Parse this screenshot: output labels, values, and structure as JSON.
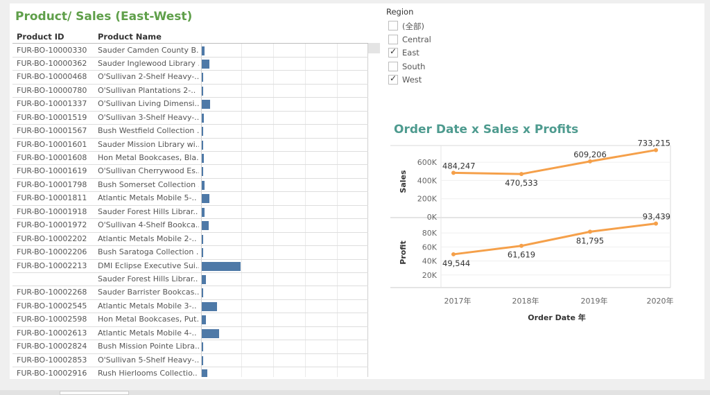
{
  "left_panel": {
    "title": "Product/ Sales (East-West)",
    "columns": {
      "product_id": "Product ID",
      "product_name": "Product Name"
    },
    "rows": [
      {
        "id": "FUR-BO-10000330",
        "name": "Sauder Camden County B..",
        "sales": 140
      },
      {
        "id": "FUR-BO-10000362",
        "name": "Sauder Inglewood Library ..",
        "sales": 400
      },
      {
        "id": "FUR-BO-10000468",
        "name": "O'Sullivan 2-Shelf Heavy-..",
        "sales": 30
      },
      {
        "id": "FUR-BO-10000780",
        "name": "O'Sullivan Plantations 2-..",
        "sales": 90
      },
      {
        "id": "FUR-BO-10001337",
        "name": "O'Sullivan Living Dimensi..",
        "sales": 460
      },
      {
        "id": "FUR-BO-10001519",
        "name": "O'Sullivan 3-Shelf Heavy-..",
        "sales": 110
      },
      {
        "id": "FUR-BO-10001567",
        "name": "Bush Westfield Collection ..",
        "sales": 40
      },
      {
        "id": "FUR-BO-10001601",
        "name": "Sauder Mission Library wi..",
        "sales": 30
      },
      {
        "id": "FUR-BO-10001608",
        "name": "Hon Metal Bookcases, Bla..",
        "sales": 120
      },
      {
        "id": "FUR-BO-10001619",
        "name": "O'Sullivan Cherrywood Es..",
        "sales": 40
      },
      {
        "id": "FUR-BO-10001798",
        "name": "Bush Somerset Collection ..",
        "sales": 130
      },
      {
        "id": "FUR-BO-10001811",
        "name": "Atlantic Metals Mobile 5-..",
        "sales": 400
      },
      {
        "id": "FUR-BO-10001918",
        "name": "Sauder Forest Hills Librar..",
        "sales": 150
      },
      {
        "id": "FUR-BO-10001972",
        "name": "O'Sullivan 4-Shelf Bookca..",
        "sales": 360
      },
      {
        "id": "FUR-BO-10002202",
        "name": "Atlantic Metals Mobile 2-..",
        "sales": 40
      },
      {
        "id": "FUR-BO-10002206",
        "name": "Bush Saratoga Collection ..",
        "sales": 40
      },
      {
        "id": "FUR-BO-10002213",
        "name": "DMI Eclipse Executive Sui..",
        "sales": 2080
      },
      {
        "id": "",
        "name": "Sauder Forest Hills Librar..",
        "sales": 230
      },
      {
        "id": "FUR-BO-10002268",
        "name": "Sauder Barrister Bookcas..",
        "sales": 70
      },
      {
        "id": "FUR-BO-10002545",
        "name": "Atlantic Metals Mobile 3-..",
        "sales": 800
      },
      {
        "id": "FUR-BO-10002598",
        "name": "Hon Metal Bookcases, Put..",
        "sales": 230
      },
      {
        "id": "FUR-BO-10002613",
        "name": "Atlantic Metals Mobile 4-..",
        "sales": 920
      },
      {
        "id": "FUR-BO-10002824",
        "name": "Bush Mission Pointe Libra..",
        "sales": 60
      },
      {
        "id": "FUR-BO-10002853",
        "name": "O'Sullivan 5-Shelf Heavy-..",
        "sales": 60
      },
      {
        "id": "FUR-BO-10002916",
        "name": "Rush Hierlooms Collectio..",
        "sales": 310
      }
    ]
  },
  "region_filter": {
    "title": "Region",
    "items": [
      {
        "label": "(全部)",
        "checked": false
      },
      {
        "label": "Central",
        "checked": false
      },
      {
        "label": "East",
        "checked": true
      },
      {
        "label": "South",
        "checked": false
      },
      {
        "label": "West",
        "checked": true
      }
    ],
    "check_glyph": "✓"
  },
  "right_panel": {
    "title": "Order Date x Sales x Profits"
  },
  "chart_data": {
    "type": "line",
    "title": "Order Date x Sales x Profits",
    "xlabel": "Order Date 年",
    "categories": [
      "2017年",
      "2018年",
      "2019年",
      "2020年"
    ],
    "line_color": "#f5a04a",
    "panels": [
      {
        "name": "Sales",
        "ylabel": "Sales",
        "ylim": [
          0,
          730000
        ],
        "ticks": [
          {
            "value": 0,
            "label": "0K"
          },
          {
            "value": 200000,
            "label": "200K"
          },
          {
            "value": 400000,
            "label": "400K"
          },
          {
            "value": 600000,
            "label": "600K"
          }
        ],
        "values": [
          484247,
          470533,
          609206,
          733215
        ],
        "data_labels": [
          "484,247",
          "470,533",
          "609,206",
          "733,215"
        ]
      },
      {
        "name": "Profit",
        "ylabel": "Profit",
        "ylim": [
          0,
          96000
        ],
        "ticks": [
          {
            "value": 20000,
            "label": "20K"
          },
          {
            "value": 40000,
            "label": "40K"
          },
          {
            "value": 60000,
            "label": "60K"
          },
          {
            "value": 80000,
            "label": "80K"
          }
        ],
        "values": [
          49544,
          61619,
          81795,
          93439
        ],
        "data_labels": [
          "49,544",
          "61,619",
          "81,795",
          "93,439"
        ]
      }
    ]
  },
  "colors": {
    "bar": "#4e79a7",
    "line": "#f5a04a",
    "left_title": "#5f9f4a",
    "right_title": "#4e9b8f"
  }
}
